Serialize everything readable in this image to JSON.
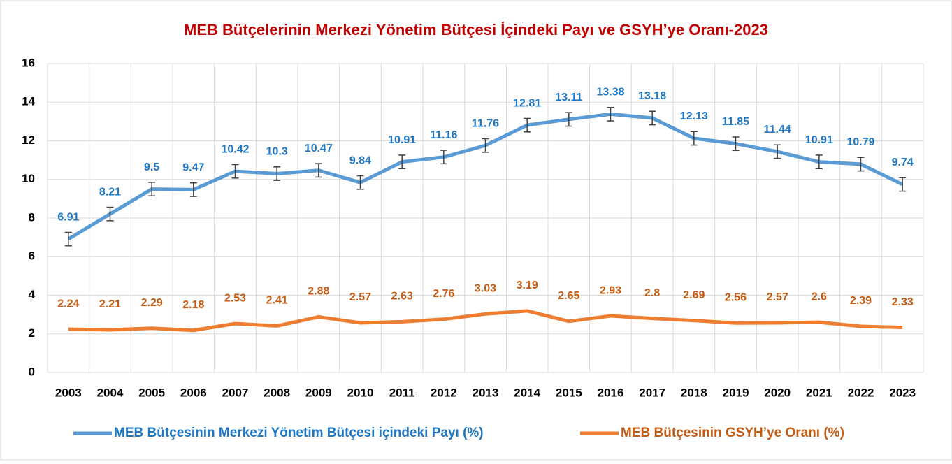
{
  "chart_data": {
    "type": "line",
    "title": "MEB Bütçelerinin Merkezi Yönetim Bütçesi İçindeki Payı ve GSYH’ye Oranı-2023",
    "categories": [
      "2003",
      "2004",
      "2005",
      "2006",
      "2007",
      "2008",
      "2009",
      "2010",
      "2011",
      "2012",
      "2013",
      "2014",
      "2015",
      "2016",
      "2017",
      "2018",
      "2019",
      "2020",
      "2021",
      "2022",
      "2023"
    ],
    "series": [
      {
        "name": "MEB Bütçesinin Merkezi Yönetim Bütçesi içindeki Payı (%)",
        "color": "#5b9bd5",
        "values": [
          6.91,
          8.21,
          9.5,
          9.47,
          10.42,
          10.3,
          10.47,
          9.84,
          10.91,
          11.16,
          11.76,
          12.81,
          13.11,
          13.38,
          13.18,
          12.13,
          11.85,
          11.44,
          10.91,
          10.79,
          9.74
        ],
        "error": 0.35,
        "label_color": "#1f77c4"
      },
      {
        "name": "MEB Bütçesinin GSYH’ye Oranı (%)",
        "color": "#ed7d31",
        "values": [
          2.24,
          2.21,
          2.29,
          2.18,
          2.53,
          2.41,
          2.88,
          2.57,
          2.63,
          2.76,
          3.03,
          3.19,
          2.65,
          2.93,
          2.8,
          2.69,
          2.56,
          2.57,
          2.6,
          2.39,
          2.33
        ],
        "label_color": "#c55a11"
      }
    ],
    "ylim": [
      0,
      16
    ],
    "yticks": [
      0,
      2,
      4,
      6,
      8,
      10,
      12,
      14,
      16
    ],
    "grid": true,
    "legend": "bottom"
  }
}
